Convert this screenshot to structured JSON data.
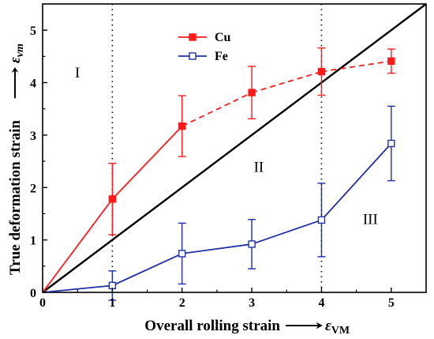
{
  "chart_data": {
    "type": "line",
    "xlabel": "Overall rolling strain",
    "xlabel_symbol": "ε",
    "xlabel_subscript": "VM",
    "ylabel": "True deformation strain",
    "ylabel_symbol": "ε",
    "ylabel_subscript": "vm",
    "arrow_glyph": "⟶",
    "xlim": [
      0,
      5.5
    ],
    "ylim": [
      0,
      5.5
    ],
    "xticks": [
      0,
      1,
      2,
      3,
      4,
      5
    ],
    "yticks": [
      0,
      1,
      2,
      3,
      4,
      5
    ],
    "grid": false,
    "legend_position": "top-center",
    "reference_line": {
      "x": [
        0,
        5.5
      ],
      "y": [
        0,
        5.5
      ],
      "color": "#000000"
    },
    "vertical_dotted_lines": [
      1,
      4
    ],
    "regions": [
      {
        "label": "I",
        "x": 0.5,
        "y": 4.1
      },
      {
        "label": "II",
        "x": 3.1,
        "y": 2.3
      },
      {
        "label": "III",
        "x": 4.7,
        "y": 1.3
      }
    ],
    "series": [
      {
        "name": "Cu",
        "color": "#ff1a1a",
        "marker": "filled-square",
        "x": [
          0,
          1,
          2,
          3,
          4,
          5
        ],
        "y": [
          0,
          1.78,
          3.17,
          3.81,
          4.21,
          4.41
        ],
        "err": [
          0,
          0.68,
          0.58,
          0.5,
          0.45,
          0.23
        ],
        "solid_until_index": 2
      },
      {
        "name": "Fe",
        "color": "#1f2fa8",
        "marker": "open-square",
        "x": [
          0,
          1,
          2,
          3,
          4,
          5
        ],
        "y": [
          0,
          0.13,
          0.74,
          0.92,
          1.38,
          2.84
        ],
        "err": [
          0,
          0.28,
          0.58,
          0.47,
          0.7,
          0.71
        ],
        "solid_until_index": 5
      }
    ]
  }
}
